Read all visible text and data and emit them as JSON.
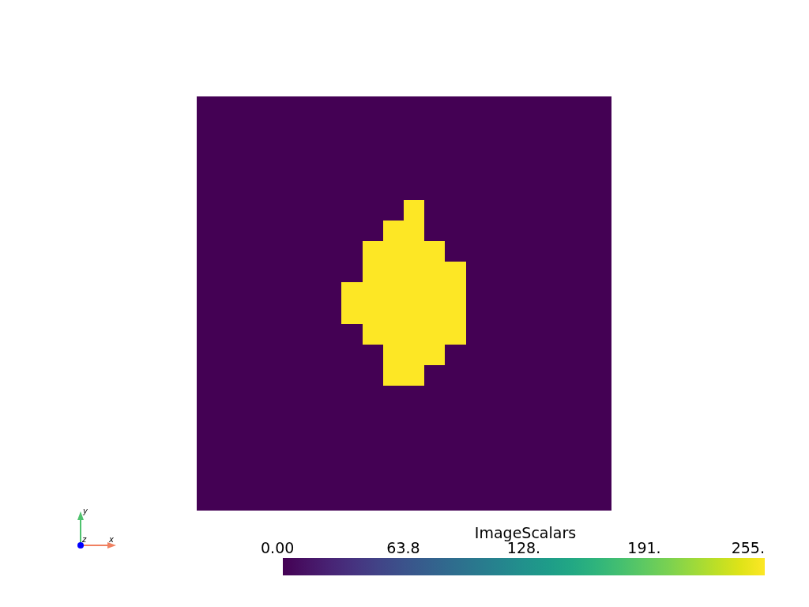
{
  "chart_data": {
    "type": "heatmap",
    "clabel": "ImageScalars",
    "categories": [
      null,
      null,
      null,
      null,
      null,
      null,
      null,
      null,
      null,
      null,
      null,
      null,
      null,
      null,
      null,
      null,
      null,
      null,
      null,
      null
    ],
    "y_categories": [
      null,
      null,
      null,
      null,
      null,
      null,
      null,
      null,
      null,
      null,
      null,
      null,
      null,
      null,
      null,
      null,
      null,
      null,
      null,
      null
    ],
    "cells": [
      [
        0,
        0,
        0,
        0,
        0,
        0,
        0,
        0,
        0,
        0,
        0,
        0,
        0,
        0,
        0,
        0,
        0,
        0,
        0,
        0
      ],
      [
        0,
        0,
        0,
        0,
        0,
        0,
        0,
        0,
        0,
        0,
        0,
        0,
        0,
        0,
        0,
        0,
        0,
        0,
        0,
        0
      ],
      [
        0,
        0,
        0,
        0,
        0,
        0,
        0,
        0,
        0,
        0,
        0,
        0,
        0,
        0,
        0,
        0,
        0,
        0,
        0,
        0
      ],
      [
        0,
        0,
        0,
        0,
        0,
        0,
        0,
        0,
        0,
        0,
        0,
        0,
        0,
        0,
        0,
        0,
        0,
        0,
        0,
        0
      ],
      [
        0,
        0,
        0,
        0,
        0,
        0,
        0,
        0,
        0,
        0,
        0,
        0,
        0,
        0,
        0,
        0,
        0,
        0,
        0,
        0
      ],
      [
        0,
        0,
        0,
        0,
        0,
        0,
        0,
        0,
        0,
        0,
        255,
        0,
        0,
        0,
        0,
        0,
        0,
        0,
        0,
        0
      ],
      [
        0,
        0,
        0,
        0,
        0,
        0,
        0,
        0,
        0,
        255,
        255,
        0,
        0,
        0,
        0,
        0,
        0,
        0,
        0,
        0
      ],
      [
        0,
        0,
        0,
        0,
        0,
        0,
        0,
        0,
        255,
        255,
        255,
        255,
        0,
        0,
        0,
        0,
        0,
        0,
        0,
        0
      ],
      [
        0,
        0,
        0,
        0,
        0,
        0,
        0,
        0,
        255,
        255,
        255,
        255,
        255,
        0,
        0,
        0,
        0,
        0,
        0,
        0
      ],
      [
        0,
        0,
        0,
        0,
        0,
        0,
        0,
        255,
        255,
        255,
        255,
        255,
        255,
        0,
        0,
        0,
        0,
        0,
        0,
        0
      ],
      [
        0,
        0,
        0,
        0,
        0,
        0,
        0,
        255,
        255,
        255,
        255,
        255,
        255,
        0,
        0,
        0,
        0,
        0,
        0,
        0
      ],
      [
        0,
        0,
        0,
        0,
        0,
        0,
        0,
        0,
        255,
        255,
        255,
        255,
        255,
        0,
        0,
        0,
        0,
        0,
        0,
        0
      ],
      [
        0,
        0,
        0,
        0,
        0,
        0,
        0,
        0,
        0,
        255,
        255,
        255,
        0,
        0,
        0,
        0,
        0,
        0,
        0,
        0
      ],
      [
        0,
        0,
        0,
        0,
        0,
        0,
        0,
        0,
        0,
        255,
        255,
        0,
        0,
        0,
        0,
        0,
        0,
        0,
        0,
        0
      ],
      [
        0,
        0,
        0,
        0,
        0,
        0,
        0,
        0,
        0,
        0,
        0,
        0,
        0,
        0,
        0,
        0,
        0,
        0,
        0,
        0
      ],
      [
        0,
        0,
        0,
        0,
        0,
        0,
        0,
        0,
        0,
        0,
        0,
        0,
        0,
        0,
        0,
        0,
        0,
        0,
        0,
        0
      ],
      [
        0,
        0,
        0,
        0,
        0,
        0,
        0,
        0,
        0,
        0,
        0,
        0,
        0,
        0,
        0,
        0,
        0,
        0,
        0,
        0
      ],
      [
        0,
        0,
        0,
        0,
        0,
        0,
        0,
        0,
        0,
        0,
        0,
        0,
        0,
        0,
        0,
        0,
        0,
        0,
        0,
        0
      ],
      [
        0,
        0,
        0,
        0,
        0,
        0,
        0,
        0,
        0,
        0,
        0,
        0,
        0,
        0,
        0,
        0,
        0,
        0,
        0,
        0
      ],
      [
        0,
        0,
        0,
        0,
        0,
        0,
        0,
        0,
        0,
        0,
        0,
        0,
        0,
        0,
        0,
        0,
        0,
        0,
        0,
        0
      ]
    ],
    "clim": [
      0,
      255
    ],
    "cticks": [
      {
        "value": 0,
        "label": "0.00"
      },
      {
        "value": 63.75,
        "label": "63.8"
      },
      {
        "value": 127.5,
        "label": "128."
      },
      {
        "value": 191.25,
        "label": "191."
      },
      {
        "value": 255,
        "label": "255."
      }
    ],
    "annotations": [
      "y",
      "z",
      "x"
    ]
  }
}
